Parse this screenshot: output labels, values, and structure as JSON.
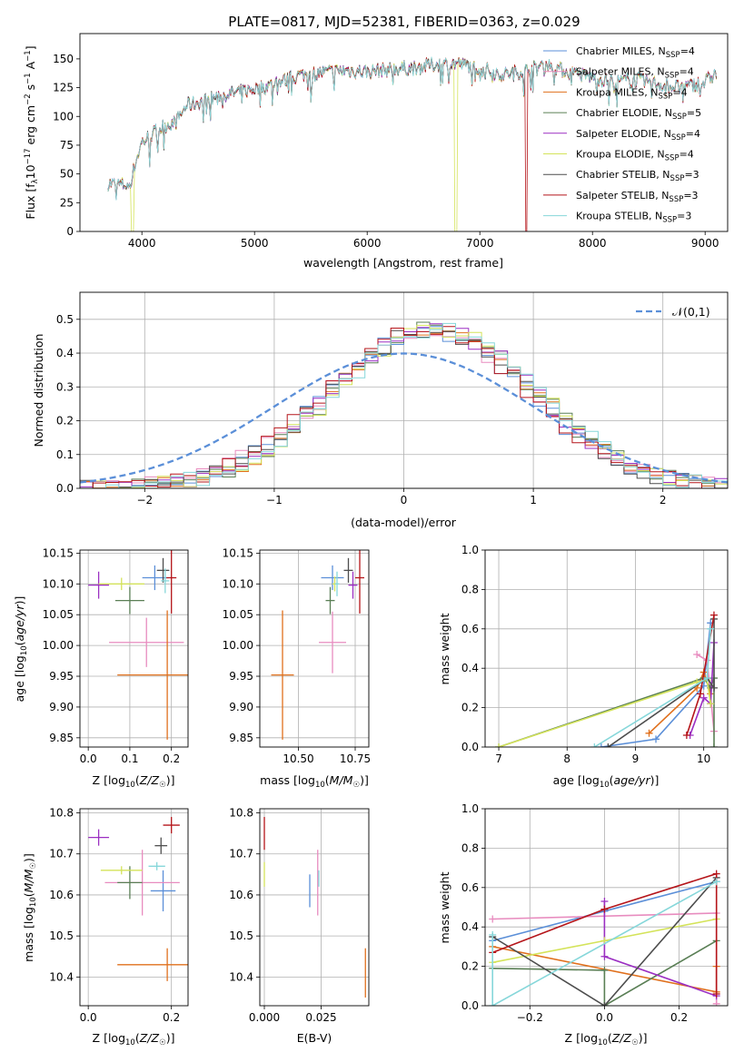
{
  "figure": {
    "title": "PLATE=0817, MJD=52381, FIBERID=0363, z=0.029"
  },
  "colors": {
    "Chabrier MILES": "#5b8fd8",
    "Salpeter MILES": "#e88cbf",
    "Kroupa MILES": "#e0701d",
    "Chabrier ELODIE": "#5a7f55",
    "Salpeter ELODIE": "#9b2fc2",
    "Kroupa ELODIE": "#d4e35a",
    "Chabrier STELIB": "#4d4d4d",
    "Salpeter STELIB": "#b5151a",
    "Kroupa STELIB": "#86d7da"
  },
  "chart_data": [
    {
      "id": "spectrum",
      "type": "line",
      "title": "PLATE=0817, MJD=52381, FIBERID=0363, z=0.029",
      "xlabel": "wavelength [Angstrom, rest frame]",
      "ylabel_parts": [
        "Flux [f",
        "λ",
        "10",
        "−17",
        " erg cm",
        "−2",
        " s",
        "−1",
        " A",
        "−1",
        "]"
      ],
      "xlim": [
        3450,
        9200
      ],
      "ylim": [
        0,
        172
      ],
      "xticks": [
        4000,
        5000,
        6000,
        7000,
        8000,
        9000
      ],
      "yticks": [
        0,
        25,
        50,
        75,
        100,
        125,
        150
      ],
      "legend_position": "upper-right",
      "legend": [
        {
          "name_parts": [
            "Chabrier MILES, N",
            "SSP",
            "=4"
          ],
          "key": "Chabrier MILES"
        },
        {
          "name_parts": [
            "Salpeter MILES, N",
            "SSP",
            "=4"
          ],
          "key": "Salpeter MILES"
        },
        {
          "name_parts": [
            "Kroupa MILES, N",
            "SSP",
            "=4"
          ],
          "key": "Kroupa MILES"
        },
        {
          "name_parts": [
            "Chabrier ELODIE, N",
            "SSP",
            "=5"
          ],
          "key": "Chabrier ELODIE"
        },
        {
          "name_parts": [
            "Salpeter ELODIE, N",
            "SSP",
            "=4"
          ],
          "key": "Salpeter ELODIE"
        },
        {
          "name_parts": [
            "Kroupa ELODIE, N",
            "SSP",
            "=4"
          ],
          "key": "Kroupa ELODIE"
        },
        {
          "name_parts": [
            "Chabrier STELIB, N",
            "SSP",
            "=3"
          ],
          "key": "Chabrier STELIB"
        },
        {
          "name_parts": [
            "Salpeter STELIB, N",
            "SSP",
            "=3"
          ],
          "key": "Salpeter STELIB"
        },
        {
          "name_parts": [
            "Kroupa STELIB, N",
            "SSP",
            "=3"
          ],
          "key": "Kroupa STELIB"
        }
      ],
      "continuum": [
        [
          3700,
          42
        ],
        [
          3900,
          40
        ],
        [
          3920,
          52
        ],
        [
          4000,
          78
        ],
        [
          4100,
          85
        ],
        [
          4200,
          92
        ],
        [
          4300,
          95
        ],
        [
          4400,
          110
        ],
        [
          4500,
          112
        ],
        [
          4700,
          118
        ],
        [
          4900,
          122
        ],
        [
          5000,
          124
        ],
        [
          5100,
          126
        ],
        [
          5200,
          130
        ],
        [
          5300,
          132
        ],
        [
          5400,
          136
        ],
        [
          5600,
          138
        ],
        [
          5800,
          140
        ],
        [
          6000,
          139
        ],
        [
          6200,
          141
        ],
        [
          6400,
          142
        ],
        [
          6600,
          145
        ],
        [
          6800,
          146
        ],
        [
          7000,
          142
        ],
        [
          7200,
          136
        ],
        [
          7400,
          140
        ],
        [
          7600,
          145
        ],
        [
          7800,
          138
        ],
        [
          8000,
          134
        ],
        [
          8200,
          130
        ],
        [
          8400,
          132
        ],
        [
          8600,
          128
        ],
        [
          8800,
          125
        ],
        [
          9000,
          130
        ],
        [
          9100,
          138
        ]
      ],
      "drop_outs": [
        {
          "key": "Kroupa ELODIE",
          "x": 3925,
          "range": [
            3900,
            3930
          ]
        },
        {
          "key": "Kroupa ELODIE",
          "x": 6780,
          "range": [
            6770,
            6800
          ]
        },
        {
          "key": "Salpeter STELIB",
          "x": 7410,
          "range": [
            7400,
            7420
          ]
        }
      ]
    },
    {
      "id": "residuals",
      "type": "histogram",
      "xlabel": "(data-model)/error",
      "ylabel": "Normed distribution",
      "xlim": [
        -2.5,
        2.5
      ],
      "ylim": [
        0,
        0.58
      ],
      "xticks": [
        -2,
        -1,
        0,
        1,
        2
      ],
      "yticks": [
        0.0,
        0.1,
        0.2,
        0.3,
        0.4,
        0.5
      ],
      "grid": true,
      "legend_position": "upper-right",
      "reference": {
        "name": "𝒩(0,1)",
        "mean": 0,
        "sigma": 1,
        "style": "dashed",
        "color": "#5b8fd8"
      },
      "bin_width": 0.1,
      "centroid_offset": 0.22
    },
    {
      "id": "age-vs-Z",
      "type": "errorbar",
      "xlabel": "Z [log10(Z/Z☉)]",
      "ylabel": "age  [log10(age/yr)]",
      "xlim": [
        -0.02,
        0.24
      ],
      "ylim": [
        9.835,
        10.155
      ],
      "xticks": [
        0.0,
        0.1,
        0.2
      ],
      "yticks": [
        9.85,
        9.9,
        9.95,
        10.0,
        10.05,
        10.1,
        10.15
      ],
      "grid": true,
      "points": [
        {
          "key": "Chabrier MILES",
          "x": 0.16,
          "xerr": 0.03,
          "y": 10.11,
          "yerr": 0.02
        },
        {
          "key": "Salpeter MILES",
          "x": 0.14,
          "xerr": 0.09,
          "y": 10.005,
          "yerr": 0.04
        },
        {
          "key": "Kroupa MILES",
          "x": 0.19,
          "xerr": 0.12,
          "y": 9.952,
          "yerr": 0.105
        },
        {
          "key": "Chabrier ELODIE",
          "x": 0.1,
          "xerr": 0.035,
          "y": 10.073,
          "yerr": 0.022
        },
        {
          "key": "Salpeter ELODIE",
          "x": 0.025,
          "xerr": 0.025,
          "y": 10.098,
          "yerr": 0.022
        },
        {
          "key": "Kroupa ELODIE",
          "x": 0.08,
          "xerr": 0.055,
          "y": 10.1,
          "yerr": 0.01
        },
        {
          "key": "Chabrier STELIB",
          "x": 0.18,
          "xerr": 0.015,
          "y": 10.122,
          "yerr": 0.02
        },
        {
          "key": "Salpeter STELIB",
          "x": 0.2,
          "xerr": 0.012,
          "y": 10.11,
          "yerr": 0.058
        },
        {
          "key": "Kroupa STELIB",
          "x": 0.185,
          "xerr": 0.01,
          "y": 10.105,
          "yerr": 0.02
        }
      ]
    },
    {
      "id": "age-vs-mass",
      "type": "errorbar",
      "xlabel": "mass [log10(M/M☉)]",
      "ylabel": "",
      "xlim": [
        10.33,
        10.81
      ],
      "ylim": [
        9.835,
        10.155
      ],
      "xticks": [
        10.5,
        10.75
      ],
      "xticklabels": [
        "10.50",
        "10.75"
      ],
      "yticks": [
        9.85,
        9.9,
        9.95,
        10.0,
        10.05,
        10.1,
        10.15
      ],
      "grid": true,
      "points": [
        {
          "key": "Chabrier MILES",
          "x": 10.65,
          "xerr": 0.05,
          "y": 10.11,
          "yerr": 0.02
        },
        {
          "key": "Salpeter MILES",
          "x": 10.65,
          "xerr": 0.06,
          "y": 10.005,
          "yerr": 0.05
        },
        {
          "key": "Kroupa MILES",
          "x": 10.43,
          "xerr": 0.05,
          "y": 9.952,
          "yerr": 0.105
        },
        {
          "key": "Chabrier ELODIE",
          "x": 10.64,
          "xerr": 0.02,
          "y": 10.073,
          "yerr": 0.022
        },
        {
          "key": "Salpeter ELODIE",
          "x": 10.74,
          "xerr": 0.02,
          "y": 10.098,
          "yerr": 0.022
        },
        {
          "key": "Kroupa ELODIE",
          "x": 10.66,
          "xerr": 0.01,
          "y": 10.1,
          "yerr": 0.012
        },
        {
          "key": "Chabrier STELIB",
          "x": 10.72,
          "xerr": 0.02,
          "y": 10.122,
          "yerr": 0.02
        },
        {
          "key": "Salpeter STELIB",
          "x": 10.77,
          "xerr": 0.02,
          "y": 10.11,
          "yerr": 0.058
        },
        {
          "key": "Kroupa STELIB",
          "x": 10.67,
          "xerr": 0.01,
          "y": 10.1,
          "yerr": 0.02
        }
      ]
    },
    {
      "id": "weight-vs-age",
      "type": "line",
      "xlabel": "age  [log10(age/yr)]",
      "ylabel": "mass weight",
      "xlim": [
        6.8,
        10.35
      ],
      "ylim": [
        0,
        1.0
      ],
      "xticks": [
        7,
        8,
        9,
        10
      ],
      "yticks": [
        0.0,
        0.2,
        0.4,
        0.6,
        0.8,
        1.0
      ],
      "grid": true,
      "series": [
        {
          "key": "Chabrier MILES",
          "points": [
            [
              8.5,
              0.0
            ],
            [
              9.3,
              0.04
            ],
            [
              10.0,
              0.31
            ],
            [
              10.1,
              0.63
            ]
          ]
        },
        {
          "key": "Salpeter MILES",
          "points": [
            [
              9.9,
              0.47
            ],
            [
              10.05,
              0.44
            ],
            [
              10.15,
              0.08
            ]
          ]
        },
        {
          "key": "Kroupa MILES",
          "points": [
            [
              9.2,
              0.07
            ],
            [
              9.9,
              0.3
            ],
            [
              10.0,
              0.38
            ],
            [
              10.1,
              0.27
            ]
          ]
        },
        {
          "key": "Chabrier ELODIE",
          "points": [
            [
              7.0,
              0.0
            ],
            [
              10.0,
              0.35
            ],
            [
              10.1,
              0.3
            ],
            [
              10.15,
              0.35
            ],
            [
              10.15,
              0.0
            ]
          ]
        },
        {
          "key": "Salpeter ELODIE",
          "points": [
            [
              9.8,
              0.06
            ],
            [
              10.0,
              0.25
            ],
            [
              10.1,
              0.22
            ],
            [
              10.15,
              0.53
            ]
          ]
        },
        {
          "key": "Kroupa ELODIE",
          "points": [
            [
              7.0,
              0.0
            ],
            [
              9.9,
              0.33
            ],
            [
              10.05,
              0.34
            ],
            [
              10.1,
              0.22
            ]
          ]
        },
        {
          "key": "Chabrier STELIB",
          "points": [
            [
              8.6,
              0.0
            ],
            [
              10.05,
              0.35
            ],
            [
              10.15,
              0.3
            ],
            [
              10.15,
              0.65
            ]
          ]
        },
        {
          "key": "Salpeter STELIB",
          "points": [
            [
              9.75,
              0.06
            ],
            [
              9.95,
              0.27
            ],
            [
              10.15,
              0.67
            ]
          ]
        },
        {
          "key": "Kroupa STELIB",
          "points": [
            [
              8.4,
              0.0
            ],
            [
              10.05,
              0.35
            ],
            [
              10.1,
              0.6
            ]
          ]
        }
      ]
    },
    {
      "id": "mass-vs-Z",
      "type": "errorbar",
      "xlabel": "Z [log10(Z/Z☉)]",
      "ylabel": "mass [log10(M/M☉)]",
      "xlim": [
        -0.02,
        0.24
      ],
      "ylim": [
        10.33,
        10.81
      ],
      "xticks": [
        0.0,
        0.2
      ],
      "yticks": [
        10.4,
        10.5,
        10.6,
        10.7,
        10.8
      ],
      "grid": true,
      "points": [
        {
          "key": "Chabrier MILES",
          "x": 0.18,
          "xerr": 0.03,
          "y": 10.61,
          "yerr": 0.05
        },
        {
          "key": "Salpeter MILES",
          "x": 0.13,
          "xerr": 0.09,
          "y": 10.63,
          "yerr": 0.08
        },
        {
          "key": "Kroupa MILES",
          "x": 0.19,
          "xerr": 0.12,
          "y": 10.43,
          "yerr": 0.04
        },
        {
          "key": "Chabrier ELODIE",
          "x": 0.1,
          "xerr": 0.03,
          "y": 10.63,
          "yerr": 0.04
        },
        {
          "key": "Salpeter ELODIE",
          "x": 0.025,
          "xerr": 0.025,
          "y": 10.74,
          "yerr": 0.02
        },
        {
          "key": "Kroupa ELODIE",
          "x": 0.08,
          "xerr": 0.05,
          "y": 10.66,
          "yerr": 0.01
        },
        {
          "key": "Chabrier STELIB",
          "x": 0.175,
          "xerr": 0.015,
          "y": 10.72,
          "yerr": 0.02
        },
        {
          "key": "Salpeter STELIB",
          "x": 0.2,
          "xerr": 0.02,
          "y": 10.77,
          "yerr": 0.02
        },
        {
          "key": "Kroupa STELIB",
          "x": 0.165,
          "xerr": 0.02,
          "y": 10.67,
          "yerr": 0.01
        }
      ]
    },
    {
      "id": "mass-vs-EBV",
      "type": "errorbar",
      "xlabel": "E(B-V)",
      "ylabel": "",
      "xlim": [
        -0.002,
        0.046
      ],
      "ylim": [
        10.33,
        10.81
      ],
      "xticks": [
        0.0,
        0.025
      ],
      "xticklabels": [
        "0.000",
        "0.025"
      ],
      "yticks": [
        10.4,
        10.5,
        10.6,
        10.7,
        10.8
      ],
      "grid": true,
      "points": [
        {
          "key": "Chabrier MILES",
          "x": 0.02,
          "xerr": 0,
          "y": 10.61,
          "yerr": 0.04
        },
        {
          "key": "Salpeter MILES",
          "x": 0.0235,
          "xerr": 0,
          "y": 10.63,
          "yerr": 0.08
        },
        {
          "key": "Kroupa MILES",
          "x": 0.0445,
          "xerr": 0,
          "y": 10.41,
          "yerr": 0.06
        },
        {
          "key": "Kroupa ELODIE",
          "x": 0.0,
          "xerr": 0,
          "y": 10.65,
          "yerr": 0.03
        },
        {
          "key": "Salpeter STELIB",
          "x": 0.0,
          "xerr": 0,
          "y": 10.75,
          "yerr": 0.04
        },
        {
          "key": "Kroupa STELIB",
          "x": 0.024,
          "xerr": 0,
          "y": 10.64,
          "yerr": 0.02
        }
      ]
    },
    {
      "id": "weight-vs-Z",
      "type": "line",
      "xlabel": "Z [log10(Z/Z☉)]",
      "ylabel": "mass weight",
      "xlim": [
        -0.32,
        0.33
      ],
      "ylim": [
        0,
        1.0
      ],
      "xticks": [
        -0.2,
        0.0,
        0.2
      ],
      "xticklabels": [
        "−0.2",
        "0.0",
        "0.2"
      ],
      "yticks": [
        0.0,
        0.2,
        0.4,
        0.6,
        0.8,
        1.0
      ],
      "grid": true,
      "series": [
        {
          "key": "Chabrier MILES",
          "points": [
            [
              -0.3,
              0.33
            ],
            [
              0.0,
              0.48
            ],
            [
              0.3,
              0.63
            ]
          ]
        },
        {
          "key": "Salpeter MILES",
          "points": [
            [
              -0.3,
              0.44
            ],
            [
              0.3,
              0.47
            ],
            [
              0.3,
              0.01
            ]
          ]
        },
        {
          "key": "Kroupa MILES",
          "points": [
            [
              -0.3,
              0.3
            ],
            [
              0.3,
              0.07
            ],
            [
              0.3,
              0.2
            ]
          ]
        },
        {
          "key": "Chabrier ELODIE",
          "points": [
            [
              -0.3,
              0.19
            ],
            [
              0.0,
              0.18
            ],
            [
              0.0,
              0.0
            ],
            [
              0.3,
              0.33
            ]
          ]
        },
        {
          "key": "Salpeter ELODIE",
          "points": [
            [
              0.0,
              0.53
            ],
            [
              0.0,
              0.25
            ],
            [
              0.3,
              0.05
            ]
          ]
        },
        {
          "key": "Kroupa ELODIE",
          "points": [
            [
              -0.3,
              0.22
            ],
            [
              0.0,
              0.33
            ],
            [
              0.3,
              0.44
            ]
          ]
        },
        {
          "key": "Chabrier STELIB",
          "points": [
            [
              -0.3,
              0.35
            ],
            [
              0.0,
              0.0
            ],
            [
              0.3,
              0.65
            ]
          ]
        },
        {
          "key": "Salpeter STELIB",
          "points": [
            [
              -0.3,
              0.27
            ],
            [
              0.0,
              0.49
            ],
            [
              0.3,
              0.67
            ],
            [
              0.3,
              0.06
            ]
          ]
        },
        {
          "key": "Kroupa STELIB",
          "points": [
            [
              -0.3,
              0.36
            ],
            [
              -0.3,
              0.0
            ],
            [
              0.3,
              0.63
            ]
          ]
        }
      ]
    }
  ]
}
